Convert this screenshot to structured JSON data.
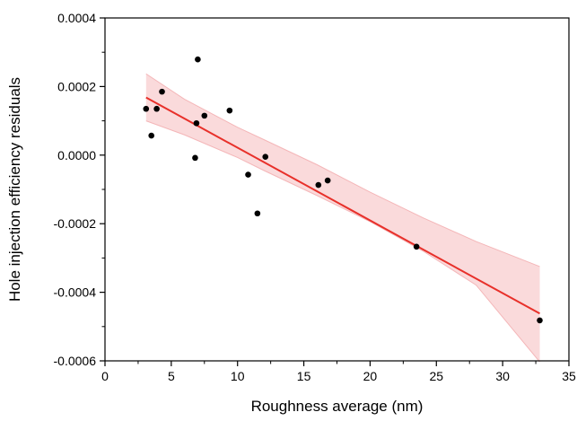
{
  "chart_data": {
    "type": "scatter",
    "xlabel": "Roughness average (nm)",
    "ylabel": "Hole injection efficiency residuals",
    "xlim": [
      0,
      35
    ],
    "ylim": [
      -0.0006,
      0.0004
    ],
    "x_ticks": [
      0,
      5,
      10,
      15,
      20,
      25,
      30,
      35
    ],
    "y_ticks": [
      -0.0006,
      -0.0004,
      -0.0002,
      0.0,
      0.0002,
      0.0004
    ],
    "x_tick_labels": [
      "0",
      "5",
      "10",
      "15",
      "20",
      "25",
      "30",
      "35"
    ],
    "y_tick_labels": [
      "-0.0006",
      "-0.0004",
      "-0.0002",
      "0.0000",
      "0.0002",
      "0.0004"
    ],
    "grid": false,
    "points": [
      {
        "x": 3.1,
        "y": 0.000135
      },
      {
        "x": 3.5,
        "y": 5.7e-05
      },
      {
        "x": 3.9,
        "y": 0.000135
      },
      {
        "x": 4.3,
        "y": 0.000185
      },
      {
        "x": 6.8,
        "y": -8e-06
      },
      {
        "x": 6.9,
        "y": 9.3e-05
      },
      {
        "x": 7.0,
        "y": 0.000279
      },
      {
        "x": 7.5,
        "y": 0.000115
      },
      {
        "x": 9.4,
        "y": 0.00013
      },
      {
        "x": 10.8,
        "y": -5.7e-05
      },
      {
        "x": 11.5,
        "y": -0.00017
      },
      {
        "x": 12.1,
        "y": -5e-06
      },
      {
        "x": 16.1,
        "y": -8.7e-05
      },
      {
        "x": 16.8,
        "y": -7.4e-05
      },
      {
        "x": 23.5,
        "y": -0.000267
      },
      {
        "x": 32.8,
        "y": -0.000482
      }
    ],
    "fit_line": {
      "x": [
        3.1,
        32.8
      ],
      "y": [
        0.000168,
        -0.000462
      ],
      "color": "#e8302a"
    },
    "confidence_band": {
      "x": [
        3.1,
        6.0,
        10.0,
        12.0,
        16.0,
        20.0,
        24.0,
        28.0,
        32.8
      ],
      "upper": [
        0.000237,
        0.000163,
        8.1e-05,
        4.5e-05,
        -2.8e-05,
        -0.000108,
        -0.000183,
        -0.000252,
        -0.000325
      ],
      "lower": [
        0.0001,
        5.9e-05,
        -7e-06,
        -4.5e-05,
        -0.000118,
        -0.000194,
        -0.00028,
        -0.000379,
        -0.000603
      ],
      "color": "#fadadb"
    },
    "point_color": "#000000"
  }
}
